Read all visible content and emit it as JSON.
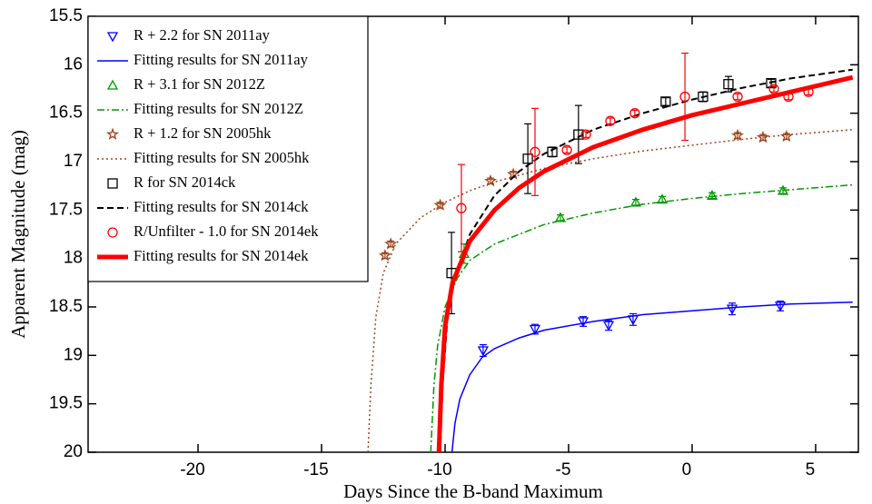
{
  "chart_data": {
    "type": "scatter",
    "xlabel": "Days Since the B-band Maximum",
    "ylabel": "Apparent Magnitude (mag)",
    "xlim": [
      -24.45,
      6.73
    ],
    "ylim": [
      15.5,
      20
    ],
    "y_inverted": true,
    "xticks": [
      -20,
      -15,
      -10,
      -5,
      0,
      5
    ],
    "yticks": [
      15.5,
      16,
      16.5,
      17,
      17.5,
      18,
      18.5,
      19,
      19.5,
      20
    ],
    "legend": "upper left",
    "series": [
      {
        "name": "R + 2.2 for SN 2011ay",
        "color": "#0000ff",
        "marker": "triangle-down",
        "x": [
          -8.46,
          -6.36,
          -4.41,
          -3.38,
          -2.39,
          1.62,
          3.57
        ],
        "values": [
          18.95,
          18.73,
          18.65,
          18.69,
          18.63,
          18.52,
          18.49
        ],
        "errors": [
          0.06,
          0.05,
          0.05,
          0.05,
          0.06,
          0.06,
          0.05
        ]
      },
      {
        "name": "Fitting results for SN 2011ay",
        "color": "#0000ff",
        "line": "solid",
        "width": 1.5,
        "x": [
          -9.72,
          -9.6,
          -9.4,
          -9,
          -8.5,
          -8,
          -7,
          -6,
          -4,
          -2,
          0,
          2,
          4,
          6.5
        ],
        "values": [
          20,
          19.7,
          19.45,
          19.2,
          19.02,
          18.93,
          18.82,
          18.74,
          18.65,
          18.58,
          18.54,
          18.5,
          18.47,
          18.45
        ]
      },
      {
        "name": "R + 3.1 for SN 2012Z",
        "color": "#009900",
        "marker": "triangle-up",
        "x": [
          -9.23,
          -5.33,
          -2.28,
          -1.21,
          0.81,
          3.68
        ],
        "values": [
          17.95,
          17.58,
          17.42,
          17.39,
          17.35,
          17.3
        ],
        "errors": [
          0.1,
          0.03,
          0.03,
          0.03,
          0.03,
          0.03
        ]
      },
      {
        "name": "Fitting results for SN 2012Z",
        "color": "#009900",
        "line": "dashdot",
        "width": 1.5,
        "x": [
          -10.58,
          -10.45,
          -10.3,
          -10,
          -9.5,
          -9,
          -8,
          -6,
          -4,
          -2,
          0,
          2,
          4,
          6.5
        ],
        "values": [
          20,
          19.3,
          18.9,
          18.5,
          18.2,
          18.02,
          17.85,
          17.65,
          17.53,
          17.44,
          17.38,
          17.33,
          17.29,
          17.24
        ]
      },
      {
        "name": "R + 1.2 for SN 2005hk",
        "color": "#a0451a",
        "marker": "star",
        "x": [
          -12.43,
          -12.2,
          -10.2,
          -8.16,
          -7.24,
          1.84,
          2.87,
          3.82
        ],
        "values": [
          17.97,
          17.85,
          17.45,
          17.2,
          17.13,
          16.73,
          16.75,
          16.74
        ],
        "errors": [
          0.03,
          0.03,
          0.03,
          0.03,
          0.03,
          0.03,
          0.03,
          0.03
        ]
      },
      {
        "name": "Fitting results for SN 2005hk",
        "color": "#a0451a",
        "line": "dotted",
        "width": 1.5,
        "x": [
          -13.12,
          -13,
          -12.8,
          -12.5,
          -12,
          -11,
          -10,
          -9,
          -8,
          -6,
          -4,
          -2,
          0,
          2,
          4,
          6.5
        ],
        "values": [
          20,
          19.3,
          18.6,
          18.15,
          17.85,
          17.58,
          17.42,
          17.3,
          17.21,
          17.07,
          16.97,
          16.89,
          16.83,
          16.77,
          16.72,
          16.67
        ]
      },
      {
        "name": "R for SN 2014ck",
        "color": "#000000",
        "marker": "square",
        "x": [
          -9.74,
          -6.65,
          -5.66,
          -4.6,
          -1.07,
          0.44,
          1.47,
          3.2
        ],
        "values": [
          18.15,
          16.97,
          16.9,
          16.72,
          16.38,
          16.33,
          16.2,
          16.19
        ],
        "errors": [
          0.42,
          0.36,
          0.05,
          0.3,
          0.04,
          0.05,
          0.08,
          0.04
        ]
      },
      {
        "name": "Fitting results for SN 2014ck",
        "color": "#000000",
        "line": "dashed",
        "width": 2,
        "x": [
          -10.2,
          -10.1,
          -9.9,
          -9.6,
          -9,
          -8,
          -7,
          -6,
          -4,
          -2,
          0,
          2,
          4,
          6.5
        ],
        "values": [
          20,
          19.3,
          18.6,
          18.2,
          17.75,
          17.35,
          17.1,
          16.92,
          16.67,
          16.5,
          16.36,
          16.24,
          16.14,
          16.05
        ]
      },
      {
        "name": "R/Unfilter - 1.0 for SN 2014ek",
        "color": "#ff0000",
        "marker": "circle",
        "x": [
          -9.34,
          -6.36,
          -5.07,
          -4.3,
          -3.31,
          -2.32,
          -0.29,
          1.84,
          3.31,
          3.9,
          4.71
        ],
        "values": [
          17.48,
          16.9,
          16.88,
          16.72,
          16.58,
          16.5,
          16.33,
          16.33,
          16.25,
          16.33,
          16.28
        ],
        "errors": [
          0.45,
          0.45,
          0.03,
          0.03,
          0.03,
          0.03,
          0.45,
          0.03,
          0.03,
          0.03,
          0.03
        ]
      },
      {
        "name": "Fitting results for SN 2014ek",
        "color": "#ff0000",
        "line": "solid",
        "width": 5,
        "x": [
          -10.25,
          -10.15,
          -10,
          -9.7,
          -9,
          -8,
          -7,
          -6,
          -4,
          -2,
          0,
          2,
          4,
          6.5
        ],
        "values": [
          20,
          19.3,
          18.7,
          18.25,
          17.82,
          17.5,
          17.27,
          17.1,
          16.85,
          16.67,
          16.52,
          16.4,
          16.28,
          16.13
        ]
      }
    ]
  }
}
